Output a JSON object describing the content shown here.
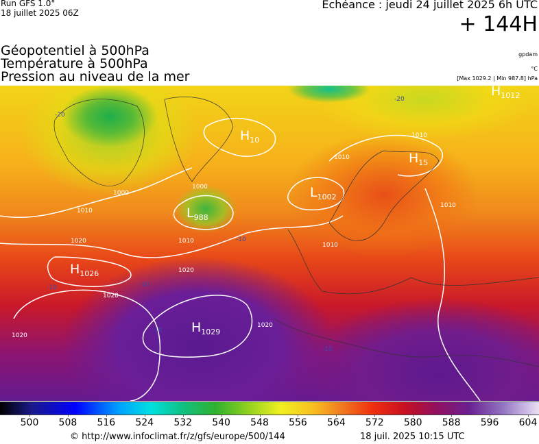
{
  "header": {
    "run": "Run GFS 1.0°",
    "run_date": "18 juillet 2025 06Z",
    "valid_time": "Echéance : jeudi 24 juillet 2025 6h UTC",
    "lead": "+ 144H"
  },
  "legend": {
    "lines": [
      "Géopotentiel à 500hPa",
      "Température à 500hPa",
      "Pression au niveau de la mer"
    ],
    "units": [
      "gpdam",
      "°C",
      "[Max 1029.2 | Min 987.8] hPa"
    ]
  },
  "map": {
    "pressure_centers": [
      {
        "letter": "H",
        "value": 1026
      },
      {
        "letter": "H",
        "value": 1029
      },
      {
        "letter": "L",
        "value": 988
      },
      {
        "letter": "L",
        "value": 1002
      },
      {
        "letter": "H",
        "value": 1012
      },
      {
        "letter": "H",
        "value": 15
      },
      {
        "letter": "H",
        "value": 10
      }
    ],
    "isobar_labels": [
      1010,
      1020,
      1020,
      1020,
      1020,
      1020,
      1010,
      1010,
      1010,
      1010,
      1010,
      1000,
      1000
    ],
    "isotherm_labels": [
      -20,
      -20,
      -10,
      -10,
      -10,
      -10,
      -10
    ]
  },
  "colorbar": {
    "ticks": [
      500,
      508,
      516,
      524,
      532,
      540,
      548,
      556,
      564,
      572,
      580,
      588,
      596,
      604
    ]
  },
  "footer": {
    "url": "© http://www.infoclimat.fr/z/gfs/europe/500/144",
    "generated": "18 juil. 2025 10:15 UTC"
  }
}
